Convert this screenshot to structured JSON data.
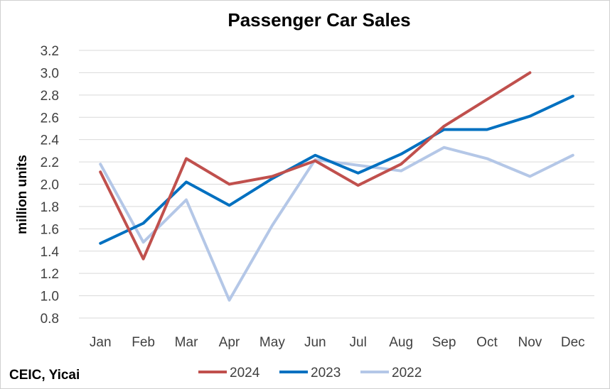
{
  "chart_data": {
    "type": "line",
    "title": "Passenger Car Sales",
    "xlabel": "",
    "ylabel": "million units",
    "categories": [
      "Jan",
      "Feb",
      "Mar",
      "Apr",
      "May",
      "Jun",
      "Jul",
      "Aug",
      "Sep",
      "Oct",
      "Nov",
      "Dec"
    ],
    "ylim": [
      0.8,
      3.2
    ],
    "yticks": [
      "0.8",
      "1.0",
      "1.2",
      "1.4",
      "1.6",
      "1.8",
      "2.0",
      "2.2",
      "2.4",
      "2.6",
      "2.8",
      "3.0",
      "3.2"
    ],
    "grid": true,
    "legend_position": "bottom",
    "series": [
      {
        "name": "2024",
        "color": "#c0504d",
        "values": [
          2.11,
          1.33,
          2.23,
          2.0,
          2.07,
          2.21,
          1.99,
          2.18,
          2.52,
          2.76,
          3.0,
          null
        ]
      },
      {
        "name": "2023",
        "color": "#0070c0",
        "values": [
          1.47,
          1.65,
          2.02,
          1.81,
          2.05,
          2.26,
          2.1,
          2.27,
          2.49,
          2.49,
          2.61,
          2.79
        ]
      },
      {
        "name": "2022",
        "color": "#b4c7e7",
        "values": [
          2.18,
          1.48,
          1.86,
          0.96,
          1.63,
          2.22,
          2.17,
          2.12,
          2.33,
          2.23,
          2.07,
          2.26
        ]
      }
    ],
    "source": "CEIC, Yicai"
  }
}
